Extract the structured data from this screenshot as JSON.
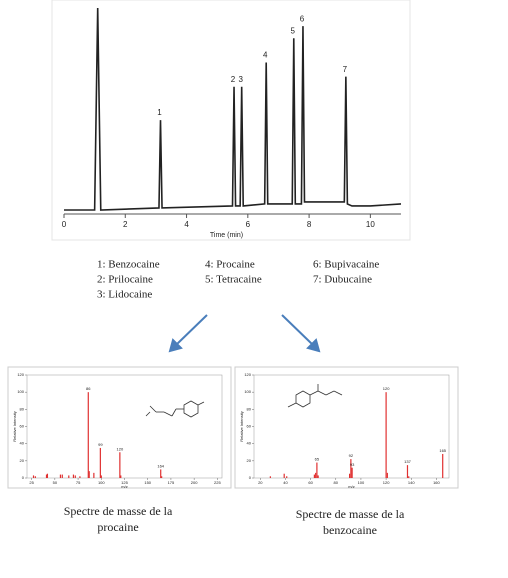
{
  "chart_data": [
    {
      "type": "line",
      "x_label": "Time (min)",
      "xlim": [
        0,
        11
      ],
      "xticks": [
        0,
        2,
        4,
        6,
        8,
        10
      ],
      "ylim": [
        0,
        100
      ],
      "series": [
        {
          "color": "#222222",
          "x": [
            0,
            1.0,
            1.1,
            1.2,
            3.1,
            3.15,
            3.2,
            5.5,
            5.55,
            5.6,
            5.75,
            5.8,
            5.85,
            6.55,
            6.6,
            6.65,
            7.45,
            7.5,
            7.55,
            7.75,
            7.8,
            7.85,
            9.15,
            9.2,
            9.25,
            9.4,
            10,
            11
          ],
          "values": [
            0,
            0,
            100,
            0,
            1,
            44.5,
            1,
            2,
            61,
            2,
            2,
            61,
            2,
            3,
            73,
            3,
            3,
            85,
            3,
            3,
            91,
            4,
            4,
            66,
            3,
            2,
            2,
            3
          ]
        }
      ],
      "annotations": [
        {
          "text": "1",
          "x": 3.15,
          "y": 44.5
        },
        {
          "text": "2",
          "x": 5.55,
          "y": 61
        },
        {
          "text": "3",
          "x": 5.8,
          "y": 61
        },
        {
          "text": "4",
          "x": 6.6,
          "y": 73
        },
        {
          "text": "5",
          "x": 7.5,
          "y": 85
        },
        {
          "text": "6",
          "x": 7.8,
          "y": 91
        },
        {
          "text": "7",
          "x": 9.2,
          "y": 66
        }
      ],
      "compounds": [
        "1: Benzocaine",
        "2: Prilocaine",
        "3: Lidocaine",
        "4: Procaine",
        "5: Tetracaine",
        "6: Bupivacaine",
        "7: Dubucaine"
      ]
    },
    {
      "type": "spectrum",
      "x_label": "m/z",
      "y_label": "Relative Intensity",
      "color": "#e03030",
      "xlim": [
        20,
        230
      ],
      "xticks": [
        25,
        50,
        75,
        100,
        125,
        150,
        175,
        200,
        225
      ],
      "ylim": [
        0,
        120
      ],
      "yticks": [
        0,
        20,
        40,
        60,
        80,
        100,
        120
      ],
      "x": [
        27,
        29,
        41,
        42,
        56,
        58,
        65,
        70,
        72,
        77,
        86,
        87,
        92,
        99,
        100,
        120,
        121,
        164,
        165
      ],
      "values": [
        3,
        2,
        4,
        5,
        4,
        4,
        3,
        4,
        3,
        2,
        100,
        8,
        6,
        35,
        3,
        30,
        3,
        10,
        2
      ],
      "caption": [
        "Spectre de masse de la",
        "procaine"
      ]
    },
    {
      "type": "spectrum",
      "x_label": "m/z",
      "y_label": "Relative Intensity",
      "color": "#e03030",
      "xlim": [
        15,
        170
      ],
      "xticks": [
        20,
        40,
        60,
        80,
        100,
        120,
        140,
        160
      ],
      "ylim": [
        0,
        120
      ],
      "yticks": [
        0,
        20,
        40,
        60,
        80,
        100,
        120
      ],
      "x": [
        28,
        39,
        41,
        63,
        64,
        65,
        66,
        91,
        92,
        93,
        120,
        121,
        137,
        138,
        165
      ],
      "values": [
        2,
        5,
        2,
        4,
        6,
        18,
        3,
        5,
        22,
        12,
        100,
        6,
        15,
        2,
        28
      ],
      "caption": [
        "Spectre de masse de la",
        "benzocaine"
      ]
    }
  ]
}
